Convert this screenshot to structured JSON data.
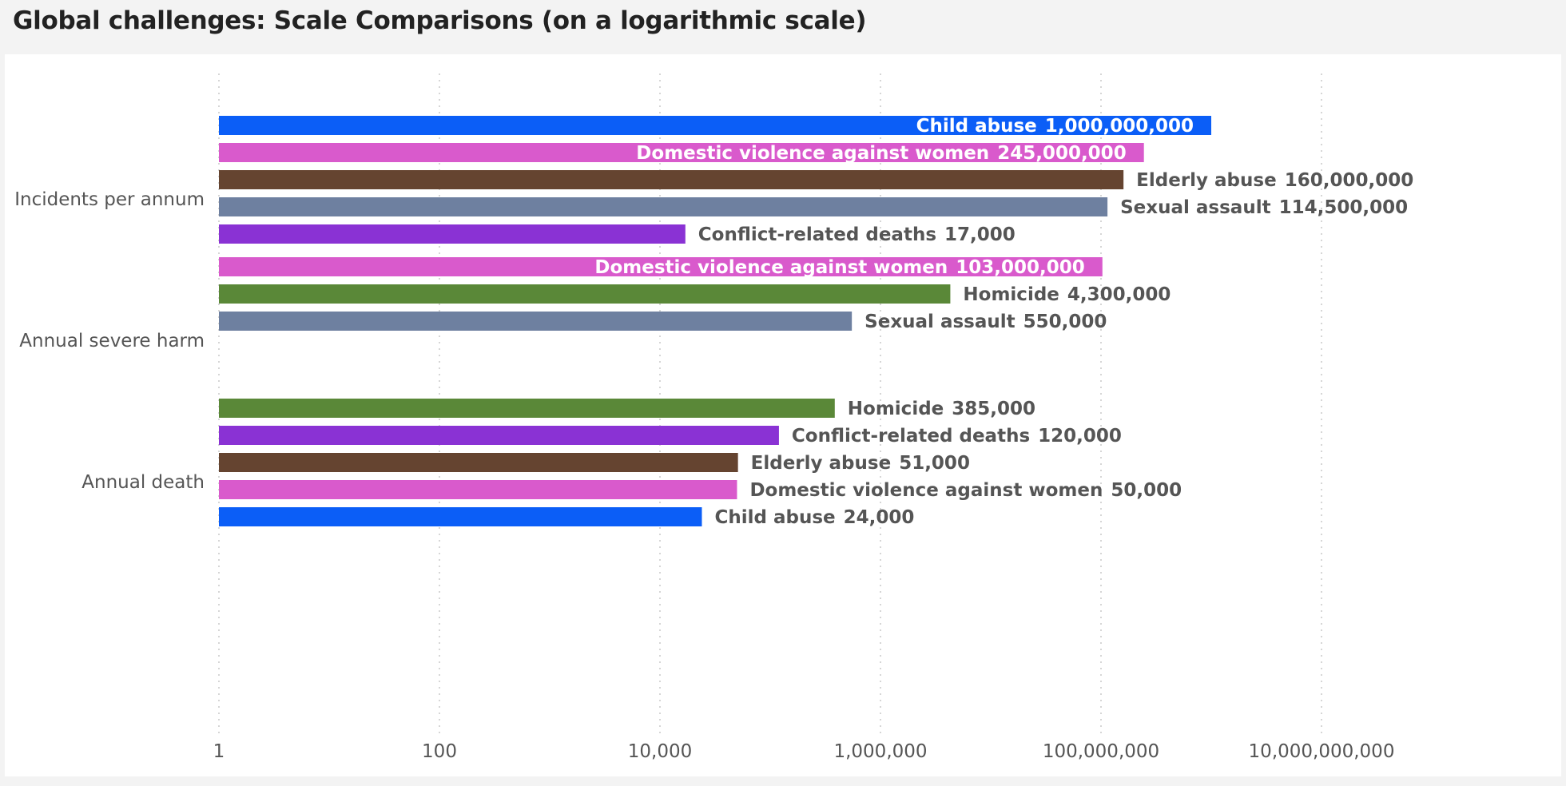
{
  "title": "Global challenges: Scale Comparisons (on a logarithmic scale)",
  "chart_data": {
    "type": "bar",
    "orientation": "horizontal",
    "x_scale": "log",
    "xlim": [
      1,
      10000000000
    ],
    "x_ticks": [
      1,
      100,
      10000,
      1000000,
      100000000,
      10000000000
    ],
    "x_tick_labels": [
      "1",
      "100",
      "10,000",
      "1,000,000",
      "100,000,000",
      "10,000,000,000"
    ],
    "grid": "vertical-dotted",
    "groups": [
      {
        "name": "Incidents per annum",
        "bars": [
          {
            "label": "Child abuse",
            "value": 1000000000,
            "value_text": "1,000,000,000",
            "color": "#0b5ef7",
            "label_inside": true
          },
          {
            "label": "Domestic violence against women",
            "value": 245000000,
            "value_text": "245,000,000",
            "color": "#d95acc",
            "label_inside": true
          },
          {
            "label": "Elderly abuse",
            "value": 160000000,
            "value_text": "160,000,000",
            "color": "#654430",
            "label_inside": false
          },
          {
            "label": "Sexual assault",
            "value": 114500000,
            "value_text": "114,500,000",
            "color": "#6e80a0",
            "label_inside": false
          },
          {
            "label": "Conflict-related deaths",
            "value": 17000,
            "value_text": "17,000",
            "color": "#8a32d4",
            "label_inside": false
          }
        ]
      },
      {
        "name": "Annual severe harm",
        "bars": [
          {
            "label": "Domestic violence against women",
            "value": 103000000,
            "value_text": "103,000,000",
            "color": "#d95acc",
            "label_inside": true
          },
          {
            "label": "Homicide",
            "value": 4300000,
            "value_text": "4,300,000",
            "color": "#5a8838",
            "label_inside": false
          },
          {
            "label": "Sexual assault",
            "value": 550000,
            "value_text": "550,000",
            "color": "#6e80a0",
            "label_inside": false
          }
        ]
      },
      {
        "name": "Annual death",
        "bars": [
          {
            "label": "Homicide",
            "value": 385000,
            "value_text": "385,000",
            "color": "#5a8838",
            "label_inside": false
          },
          {
            "label": "Conflict-related deaths",
            "value": 120000,
            "value_text": "120,000",
            "color": "#8a32d4",
            "label_inside": false
          },
          {
            "label": "Elderly abuse",
            "value": 51000,
            "value_text": "51,000",
            "color": "#654430",
            "label_inside": false
          },
          {
            "label": "Domestic violence against women",
            "value": 50000,
            "value_text": "50,000",
            "color": "#d95acc",
            "label_inside": false
          },
          {
            "label": "Child abuse",
            "value": 24000,
            "value_text": "24,000",
            "color": "#0b5ef7",
            "label_inside": false
          }
        ]
      }
    ],
    "colors": {
      "inside_label": "#ffffff",
      "outside_label": "#555555",
      "grid": "#c8c8c8"
    }
  }
}
